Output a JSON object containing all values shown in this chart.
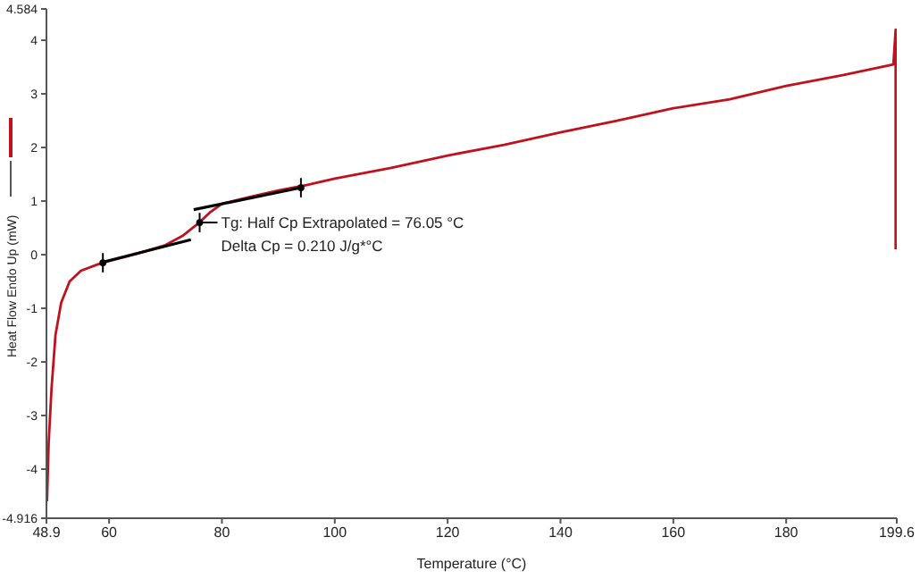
{
  "chart_data": {
    "type": "line",
    "xlabel": "Temperature (°C)",
    "ylabel": "Heat Flow Endo Up (mW)",
    "xlim": [
      48.9,
      199.6
    ],
    "ylim": [
      -4.916,
      4.584
    ],
    "xticks": [
      48.9,
      60,
      80,
      100,
      120,
      140,
      160,
      180,
      199.6
    ],
    "yticks": [
      -4.916,
      -4,
      -3,
      -2,
      -1,
      0,
      1,
      2,
      3,
      4,
      4.584
    ],
    "series": [
      {
        "color": "#c0111f",
        "x": [
          49.0,
          49.3,
          49.8,
          50.5,
          51.5,
          53,
          55,
          58,
          60,
          65,
          70,
          73,
          76,
          78,
          80,
          85,
          90,
          95,
          100,
          110,
          120,
          130,
          140,
          150,
          160,
          170,
          180,
          190,
          199,
          199.4,
          199.4
        ],
        "values": [
          -4.6,
          -3.5,
          -2.5,
          -1.5,
          -0.9,
          -0.5,
          -0.3,
          -0.18,
          -0.12,
          0.02,
          0.18,
          0.35,
          0.6,
          0.8,
          0.95,
          1.08,
          1.2,
          1.3,
          1.42,
          1.62,
          1.85,
          2.05,
          2.28,
          2.5,
          2.73,
          2.9,
          3.15,
          3.35,
          3.55,
          4.2,
          0.1
        ]
      },
      {
        "type": "line",
        "color": "#000000",
        "x": [
          58.5,
          74.5
        ],
        "values": [
          -0.15,
          0.28
        ]
      },
      {
        "type": "line",
        "color": "#000000",
        "x": [
          75,
          94
        ],
        "values": [
          0.84,
          1.25
        ]
      },
      {
        "type": "scatter",
        "color": "#000000",
        "x": [
          58.9,
          76.05,
          94
        ],
        "values": [
          -0.15,
          0.6,
          1.25
        ],
        "errors": [
          0.18,
          0.18,
          0.18
        ]
      }
    ],
    "annotations": [
      {
        "text": "Tg: Half Cp Extrapolated = 76.05 °C",
        "x": 76.05,
        "y": 0.6
      },
      "Delta Cp = 0.210 J/g*°C"
    ]
  }
}
